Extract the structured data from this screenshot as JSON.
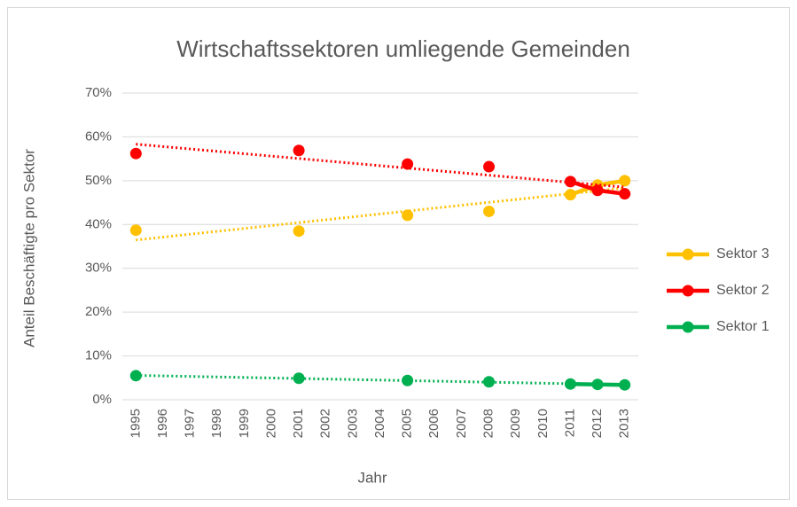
{
  "chart_data": {
    "type": "line",
    "title": "Wirtschaftssektoren umliegende Gemeinden",
    "x_label": "Jahr",
    "y_label": "Anteil Beschäftigte pro Sektor",
    "categories": [
      "1995",
      "1996",
      "1997",
      "1998",
      "1999",
      "2000",
      "2001",
      "2002",
      "2003",
      "2004",
      "2005",
      "2006",
      "2007",
      "2008",
      "2009",
      "2010",
      "2011",
      "2012",
      "2013"
    ],
    "series": [
      {
        "name": "Sektor 3",
        "color": "#FFC000",
        "values": [
          38.7,
          null,
          null,
          null,
          null,
          null,
          38.5,
          null,
          null,
          null,
          42.1,
          null,
          null,
          43,
          null,
          null,
          46.8,
          49,
          50
        ]
      },
      {
        "name": "Sektor 2",
        "color": "#FF0000",
        "values": [
          56.2,
          null,
          null,
          null,
          null,
          null,
          56.9,
          null,
          null,
          null,
          53.8,
          null,
          null,
          53.2,
          null,
          null,
          49.8,
          47.8,
          47
        ]
      },
      {
        "name": "Sektor 1",
        "color": "#00B050",
        "values": [
          5.5,
          null,
          null,
          null,
          null,
          null,
          4.9,
          null,
          null,
          null,
          4.4,
          null,
          null,
          4.1,
          null,
          null,
          3.6,
          3.5,
          3.4
        ]
      }
    ],
    "trendline": "linear",
    "ylim": [
      0,
      70
    ],
    "yticks": [
      {
        "value": 0,
        "label": "0%"
      },
      {
        "value": 10,
        "label": "10%"
      },
      {
        "value": 20,
        "label": "20%"
      },
      {
        "value": 30,
        "label": "30%"
      },
      {
        "value": 40,
        "label": "40%"
      },
      {
        "value": 50,
        "label": "50%"
      },
      {
        "value": 60,
        "label": "60%"
      },
      {
        "value": 70,
        "label": "70%"
      }
    ],
    "grid": true,
    "legend": "right"
  }
}
